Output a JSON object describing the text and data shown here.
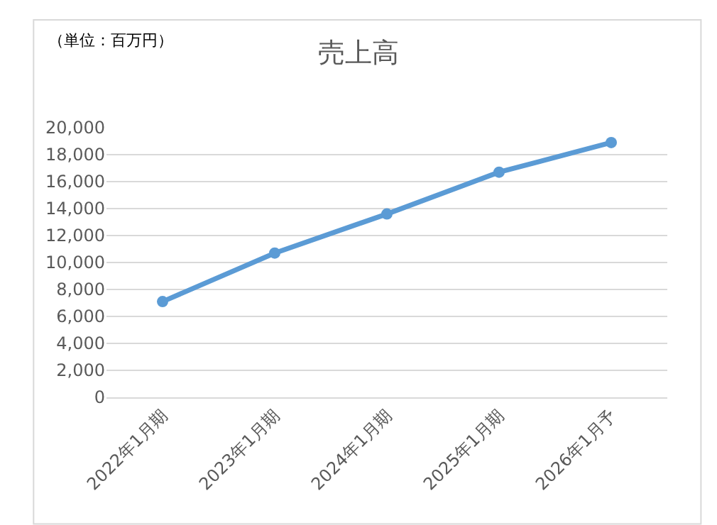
{
  "chart_data": {
    "type": "line",
    "title": "売上高",
    "annotations": [
      "（単位：百万円）"
    ],
    "categories": [
      "2022年1月期",
      "2023年1月期",
      "2024年1月期",
      "2025年1月期",
      "2026年1月予"
    ],
    "series": [
      {
        "color": "#5b9bd5",
        "values": [
          7100,
          10700,
          13600,
          16700,
          18900
        ]
      }
    ],
    "ylim": [
      0,
      20000
    ],
    "yticks": [
      {
        "value": 0,
        "label": "0"
      },
      {
        "value": 2000,
        "label": "2,000"
      },
      {
        "value": 4000,
        "label": "4,000"
      },
      {
        "value": 6000,
        "label": "6,000"
      },
      {
        "value": 8000,
        "label": "8,000"
      },
      {
        "value": 10000,
        "label": "10,000"
      },
      {
        "value": 12000,
        "label": "12,000"
      },
      {
        "value": 14000,
        "label": "14,000"
      },
      {
        "value": 16000,
        "label": "16,000"
      },
      {
        "value": 18000,
        "label": "18,000"
      },
      {
        "value": 20000,
        "label": "20,000"
      }
    ],
    "grid": "y",
    "marker": "circle",
    "line_style": "solid",
    "legend": false
  }
}
